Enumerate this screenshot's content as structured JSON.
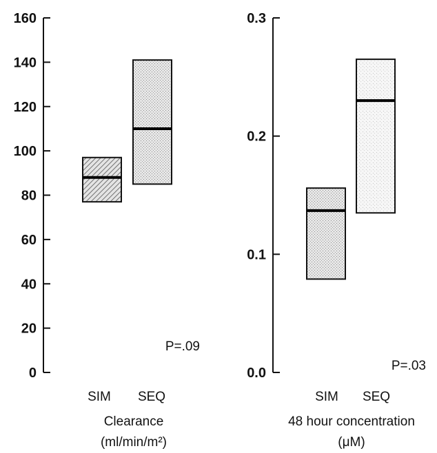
{
  "chart_data": [
    {
      "type": "box",
      "xlabel": "Clearance",
      "xlabel_unit": "(ml/min/m²)",
      "ylim": [
        0,
        160
      ],
      "yticks": [
        "0",
        "20",
        "40",
        "60",
        "80",
        "100",
        "120",
        "140",
        "160"
      ],
      "categories": [
        "SIM",
        "SEQ"
      ],
      "boxes": [
        {
          "category": "SIM",
          "low": 77,
          "median": 88,
          "high": 97,
          "fill": "hatched"
        },
        {
          "category": "SEQ",
          "low": 85,
          "median": 110,
          "high": 141,
          "fill": "stippled"
        }
      ],
      "annotation": "P=.09"
    },
    {
      "type": "box",
      "xlabel": "48 hour concentration",
      "xlabel_unit": "(μM)",
      "ylim": [
        0,
        0.3
      ],
      "yticks": [
        "0.0",
        "0.1",
        "0.2",
        "0.3"
      ],
      "categories": [
        "SIM",
        "SEQ"
      ],
      "boxes": [
        {
          "category": "SIM",
          "low": 0.079,
          "median": 0.137,
          "high": 0.156,
          "fill": "stippled"
        },
        {
          "category": "SEQ",
          "low": 0.135,
          "median": 0.23,
          "high": 0.265,
          "fill": "light-stippled"
        }
      ],
      "annotation": "P=.03"
    }
  ]
}
